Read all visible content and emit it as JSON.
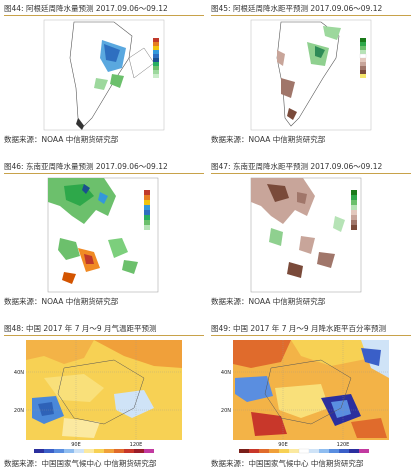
{
  "panels": [
    {
      "caption": "图44: 阿根廷周降水量预测 2017.09.06～09.12",
      "source": "数据来源：NOAA 中信期货研究部"
    },
    {
      "caption": "图45: 阿根廷周降水距平预测 2017.09.06～09.12",
      "source": "数据来源：NOAA 中信期货研究部"
    },
    {
      "caption": "图46: 东南亚周降水量预测 2017.09.06～09.12",
      "source": "数据来源：NOAA 中信期货研究部"
    },
    {
      "caption": "图47: 东南亚周降水距平预测 2017.09.06～09.12",
      "source": "数据来源：NOAA 中信期货研究部"
    },
    {
      "caption": "图48: 中国 2017 年 7 月～9 月气温距平预测",
      "source": "数据来源：中国国家气候中心 中信期货研究部"
    },
    {
      "caption": "图49: 中国 2017 年 7 月～9 月降水距平百分率预测",
      "source": "数据来源：中国国家气候中心 中信期货研究部"
    }
  ],
  "maps": {
    "map48": {
      "y_labels": [
        "40N",
        "20N"
      ],
      "x_labels": [
        "90E",
        "120E"
      ]
    },
    "map49": {
      "y_labels": [
        "40N",
        "20N"
      ],
      "x_labels": [
        "90E",
        "120E"
      ]
    }
  },
  "colors": {
    "caption_rule": "#c8a24a",
    "land": "#ffffff",
    "sea": "#ffffff"
  }
}
